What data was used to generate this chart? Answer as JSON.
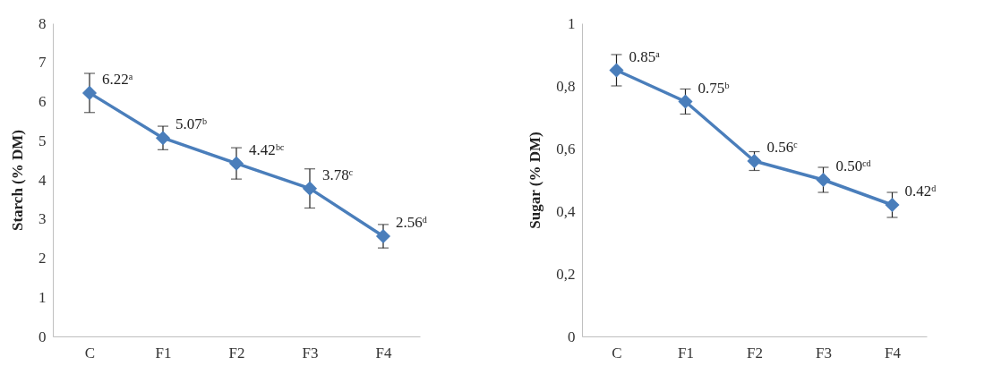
{
  "chart_data": [
    {
      "type": "line",
      "ylabel": "Starch (% DM)",
      "categories": [
        "C",
        "F1",
        "F2",
        "F3",
        "F4"
      ],
      "series": [
        {
          "color": "#4a7ebb",
          "values": [
            6.22,
            5.07,
            4.42,
            3.78,
            2.56
          ],
          "errors": [
            0.5,
            0.3,
            0.4,
            0.5,
            0.3
          ],
          "value_labels": [
            "6.22ᵃ",
            "5.07ᵇ",
            "4.42ᵇᶜ",
            "3.78ᶜ",
            "2.56ᵈ"
          ]
        }
      ],
      "ylim": [
        0,
        8
      ],
      "yticks": [
        0,
        1,
        2,
        3,
        4,
        5,
        6,
        7,
        8
      ],
      "grid": false,
      "legend": false,
      "marker": "diamond",
      "line_style": "solid"
    },
    {
      "type": "line",
      "ylabel": "Sugar (% DM)",
      "categories": [
        "C",
        "F1",
        "F2",
        "F3",
        "F4"
      ],
      "series": [
        {
          "color": "#4a7ebb",
          "values": [
            0.85,
            0.75,
            0.56,
            0.5,
            0.42
          ],
          "errors": [
            0.05,
            0.04,
            0.03,
            0.04,
            0.04
          ],
          "value_labels": [
            "0.85ᵃ",
            "0.75ᵇ",
            "0.56ᶜ",
            "0.50ᶜᵈ",
            "0.42ᵈ"
          ]
        }
      ],
      "ylim": [
        0,
        1
      ],
      "yticks": [
        0,
        {
          "value": 0.2,
          "label": "0,2"
        },
        {
          "value": 0.4,
          "label": "0,4"
        },
        {
          "value": 0.6,
          "label": "0,6"
        },
        {
          "value": 0.8,
          "label": "0,8"
        },
        1
      ],
      "grid": false,
      "legend": false,
      "marker": "diamond",
      "line_style": "solid"
    }
  ]
}
